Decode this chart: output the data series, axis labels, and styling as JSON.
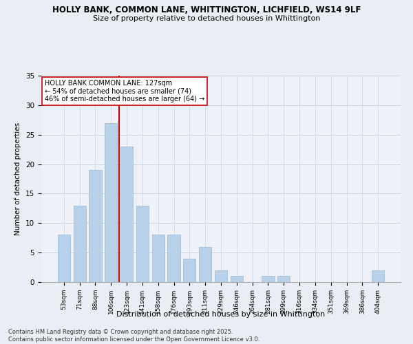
{
  "title1": "HOLLY BANK, COMMON LANE, WHITTINGTON, LICHFIELD, WS14 9LF",
  "title2": "Size of property relative to detached houses in Whittington",
  "xlabel": "Distribution of detached houses by size in Whittington",
  "ylabel": "Number of detached properties",
  "categories": [
    "53sqm",
    "71sqm",
    "88sqm",
    "106sqm",
    "123sqm",
    "141sqm",
    "158sqm",
    "176sqm",
    "193sqm",
    "211sqm",
    "229sqm",
    "246sqm",
    "264sqm",
    "281sqm",
    "299sqm",
    "316sqm",
    "334sqm",
    "351sqm",
    "369sqm",
    "386sqm",
    "404sqm"
  ],
  "values": [
    8,
    13,
    19,
    27,
    23,
    13,
    8,
    8,
    4,
    6,
    2,
    1,
    0,
    1,
    1,
    0,
    0,
    0,
    0,
    0,
    2
  ],
  "bar_color": "#b8d0e8",
  "bar_edge_color": "#9ab8d8",
  "vline_x_index": 3.5,
  "vline_color": "#cc0000",
  "annotation_text": "HOLLY BANK COMMON LANE: 127sqm\n← 54% of detached houses are smaller (74)\n46% of semi-detached houses are larger (64) →",
  "annotation_box_edge_color": "#cc0000",
  "footer_text": "Contains HM Land Registry data © Crown copyright and database right 2025.\nContains public sector information licensed under the Open Government Licence v3.0.",
  "ylim": [
    0,
    35
  ],
  "yticks": [
    0,
    5,
    10,
    15,
    20,
    25,
    30,
    35
  ],
  "background_color": "#e8eef4",
  "plot_background_color": "#eef2f8"
}
